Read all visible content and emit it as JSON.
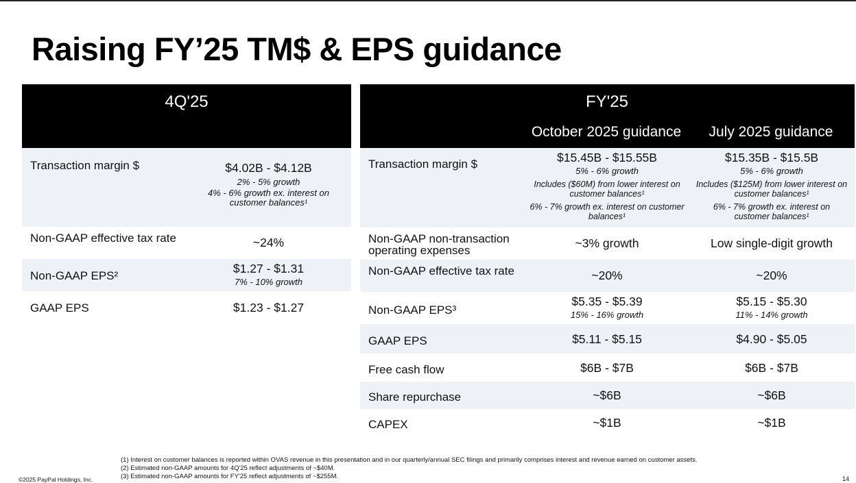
{
  "title": "Raising FY’25 TM$ & EPS guidance",
  "left": {
    "header": "4Q'25",
    "rows": [
      {
        "label": "Transaction margin $",
        "value": "$4.02B - $4.12B",
        "sub1": "2% - 5% growth",
        "sub2": "4% - 6% growth ex. interest on customer balances¹"
      },
      {
        "label": "Non-GAAP effective tax rate",
        "value": "~24%"
      },
      {
        "label": "Non-GAAP EPS²",
        "value": "$1.27 - $1.31",
        "sub1": "7% - 10% growth"
      },
      {
        "label": "GAAP EPS",
        "value": "$1.23 - $1.27"
      }
    ]
  },
  "right": {
    "header": "FY'25",
    "col1": "October 2025 guidance",
    "col2": "July 2025 guidance",
    "rows": [
      {
        "label": "Transaction margin $",
        "c1": {
          "value": "$15.45B - $15.55B",
          "sub1": "5% - 6% growth",
          "sub2": "Includes ($60M) from lower interest on customer balances¹",
          "sub3": "6% - 7% growth ex. interest on customer balances¹"
        },
        "c2": {
          "value": "$15.35B - $15.5B",
          "sub1": "5% - 6% growth",
          "sub2": "Includes ($125M) from lower interest on customer balances¹",
          "sub3": "6% - 7% growth ex. interest on customer balances¹"
        }
      },
      {
        "label": "Non-GAAP non-transaction operating expenses",
        "c1": {
          "value": "~3% growth"
        },
        "c2": {
          "value": "Low single-digit growth"
        }
      },
      {
        "label": "Non-GAAP effective tax rate",
        "c1": {
          "value": "~20%"
        },
        "c2": {
          "value": "~20%"
        }
      },
      {
        "label": "Non-GAAP EPS³",
        "c1": {
          "value": "$5.35 - $5.39",
          "sub1": "15% - 16% growth"
        },
        "c2": {
          "value": "$5.15 - $5.30",
          "sub1": "11% - 14% growth"
        }
      },
      {
        "label": "GAAP EPS",
        "c1": {
          "value": "$5.11 - $5.15"
        },
        "c2": {
          "value": "$4.90 - $5.05"
        }
      },
      {
        "label": "Free cash flow",
        "c1": {
          "value": "$6B - $7B"
        },
        "c2": {
          "value": "$6B - $7B"
        }
      },
      {
        "label": "Share repurchase",
        "c1": {
          "value": "~$6B"
        },
        "c2": {
          "value": "~$6B"
        }
      },
      {
        "label": "CAPEX",
        "c1": {
          "value": "~$1B"
        },
        "c2": {
          "value": "~$1B"
        }
      }
    ]
  },
  "footnotes": [
    "(1) Interest on customer balances is reported within OVAS revenue in this presentation and in our quarterly/annual SEC filings and primarily comprises interest and revenue earned on customer assets.",
    "(2) Estimated non-GAAP amounts for 4Q'25 reflect adjustments of ~$40M.",
    "(3) Estimated non-GAAP amounts for FY'25 reflect adjustments of ~$255M."
  ],
  "copyright": "©2025 PayPal Holdings, Inc.",
  "page_number": "14",
  "colors": {
    "header_bg": "#000000",
    "shade": "#eef1f6"
  }
}
